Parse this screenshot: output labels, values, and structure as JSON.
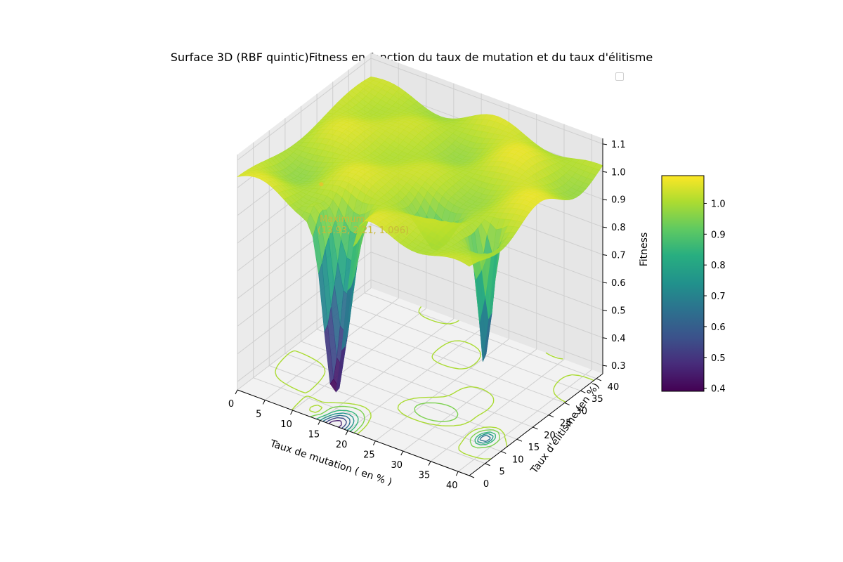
{
  "chart_data": {
    "type": "surface3d",
    "title": "Surface 3D (RBF quintic)Fitness en fonction du taux de mutation et du taux d'élitisme",
    "xlabel": "Taux de mutation ( en % )",
    "ylabel": "Taux d'élitisme (en %)",
    "zlabel": "Fitness",
    "xlim": [
      0,
      42
    ],
    "ylim": [
      0,
      42
    ],
    "zlim": [
      0.27,
      1.12
    ],
    "x_ticks": [
      "0",
      "5",
      "10",
      "15",
      "20",
      "25",
      "30",
      "35",
      "40"
    ],
    "y_ticks": [
      "0",
      "5",
      "10",
      "15",
      "20",
      "25",
      "30",
      "35",
      "40"
    ],
    "z_ticks": [
      "0.3",
      "0.4",
      "0.5",
      "0.6",
      "0.7",
      "0.8",
      "0.9",
      "1.0",
      "1.1"
    ],
    "colormap": "viridis",
    "colorbar": {
      "min": 0.39,
      "max": 1.09,
      "ticks": [
        "0.4",
        "0.5",
        "0.6",
        "0.7",
        "0.8",
        "0.9",
        "1.0"
      ]
    },
    "surface": {
      "base_fitness": 1.02,
      "wells": [
        {
          "x": 17.5,
          "y": 0.5,
          "min_fitness": 0.39
        },
        {
          "x": 38.0,
          "y": 12.0,
          "min_fitness": 0.55
        },
        {
          "x": 28.0,
          "y": 14.0,
          "min_fitness": 0.86
        }
      ]
    },
    "annotation": {
      "label_line1": "Maximum",
      "label_line2": "(13.93, 2.21, 1.096)",
      "x": 13.93,
      "y": 2.21,
      "z": 1.096,
      "color": "#c8b93a"
    },
    "legend_placement": "top-right",
    "grid": true
  }
}
